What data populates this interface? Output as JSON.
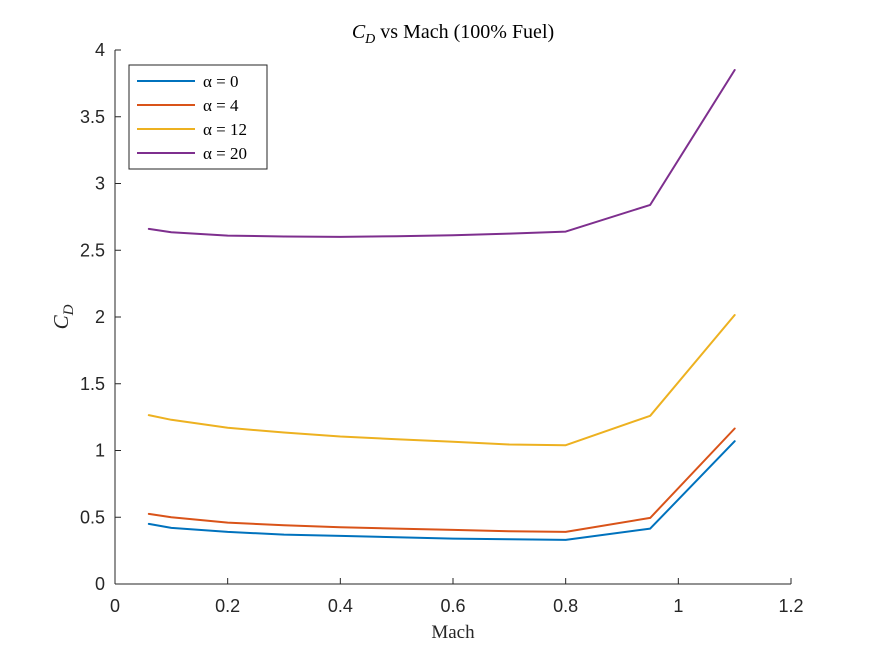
{
  "chart_data": {
    "type": "line",
    "title_main": "C",
    "title_sub": "D",
    "title_rest": " vs Mach (100% Fuel)",
    "xlabel": "Mach",
    "ylabel_main": "C",
    "ylabel_sub": "D",
    "xlim": [
      0,
      1.2
    ],
    "ylim": [
      0,
      4
    ],
    "xticks": [
      0,
      0.2,
      0.4,
      0.6,
      0.8,
      1,
      1.2
    ],
    "xtick_labels": [
      "0",
      "0.2",
      "0.4",
      "0.6",
      "0.8",
      "1",
      "1.2"
    ],
    "yticks": [
      0,
      0.5,
      1,
      1.5,
      2,
      2.5,
      3,
      3.5,
      4
    ],
    "ytick_labels": [
      "0",
      "0.5",
      "1",
      "1.5",
      "2",
      "2.5",
      "3",
      "3.5",
      "4"
    ],
    "grid": false,
    "legend_position": "top-left",
    "x": [
      0.06,
      0.1,
      0.2,
      0.3,
      0.4,
      0.5,
      0.6,
      0.7,
      0.8,
      0.95,
      1.1
    ],
    "series": [
      {
        "name": "α = 0",
        "color": "#0072BD",
        "values": [
          0.45,
          0.42,
          0.39,
          0.37,
          0.36,
          0.35,
          0.34,
          0.335,
          0.33,
          0.415,
          1.07
        ]
      },
      {
        "name": "α = 4",
        "color": "#D95319",
        "values": [
          0.525,
          0.5,
          0.46,
          0.44,
          0.425,
          0.415,
          0.405,
          0.395,
          0.39,
          0.495,
          1.165
        ]
      },
      {
        "name": "α = 12",
        "color": "#EDB120",
        "values": [
          1.265,
          1.23,
          1.17,
          1.135,
          1.105,
          1.085,
          1.065,
          1.045,
          1.04,
          1.26,
          2.015
        ]
      },
      {
        "name": "α = 20",
        "color": "#7E2F8E",
        "values": [
          2.66,
          2.635,
          2.61,
          2.603,
          2.6,
          2.605,
          2.612,
          2.625,
          2.64,
          2.84,
          3.85
        ]
      }
    ]
  }
}
